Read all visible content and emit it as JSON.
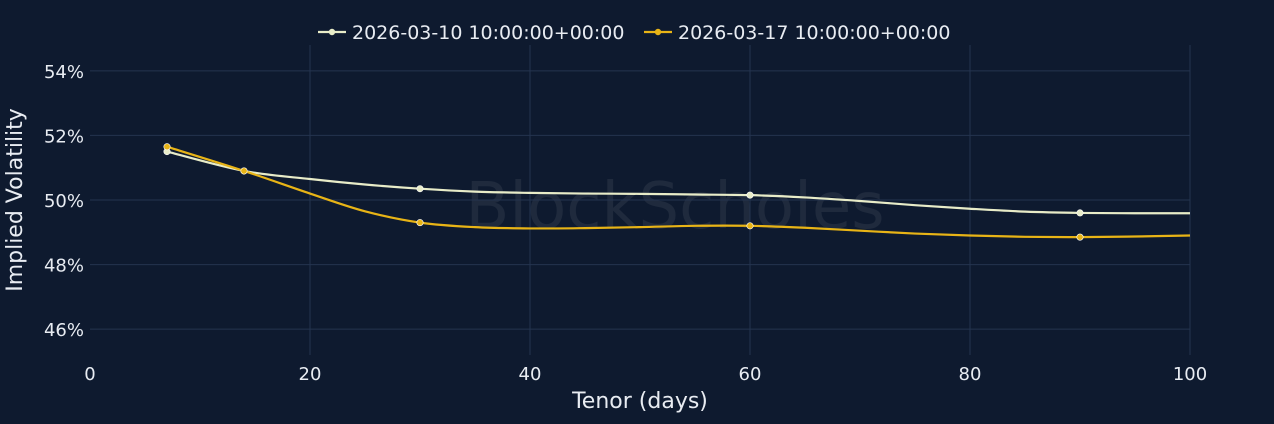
{
  "chart_data": {
    "type": "line",
    "xlabel": "Tenor (days)",
    "ylabel": "Implied Volatility",
    "xlim": [
      0,
      100
    ],
    "ylim": [
      45.2,
      54.8
    ],
    "x_ticks": [
      0,
      20,
      40,
      60,
      80,
      100
    ],
    "y_ticks": [
      46,
      48,
      50,
      52,
      54
    ],
    "y_tick_suffix": "%",
    "grid": true,
    "legend_position": "top-center",
    "watermark": "BlockScholes",
    "series": [
      {
        "name": "2026-03-10 10:00:00+00:00",
        "color": "#e8ecc8",
        "marker_x": [
          7,
          14,
          30,
          60,
          90
        ],
        "marker_y": [
          51.5,
          50.9,
          50.35,
          50.15,
          49.6
        ],
        "curve_x": [
          7,
          14,
          20,
          25,
          30,
          35,
          40,
          45,
          50,
          55,
          60,
          65,
          70,
          75,
          80,
          85,
          90,
          95,
          100
        ],
        "curve_y": [
          51.5,
          50.9,
          50.65,
          50.48,
          50.35,
          50.26,
          50.22,
          50.2,
          50.19,
          50.17,
          50.15,
          50.08,
          49.97,
          49.84,
          49.73,
          49.64,
          49.6,
          49.59,
          49.59
        ]
      },
      {
        "name": "2026-03-17 10:00:00+00:00",
        "color": "#e8b416",
        "marker_x": [
          7,
          14,
          30,
          60,
          90
        ],
        "marker_y": [
          51.65,
          50.9,
          49.3,
          49.2,
          48.85
        ],
        "curve_x": [
          7,
          14,
          20,
          25,
          30,
          35,
          40,
          45,
          50,
          55,
          60,
          65,
          70,
          75,
          80,
          85,
          90,
          95,
          100
        ],
        "curve_y": [
          51.65,
          50.9,
          50.2,
          49.65,
          49.3,
          49.16,
          49.12,
          49.13,
          49.16,
          49.2,
          49.2,
          49.14,
          49.05,
          48.96,
          48.9,
          48.86,
          48.85,
          48.87,
          48.9
        ]
      }
    ]
  }
}
